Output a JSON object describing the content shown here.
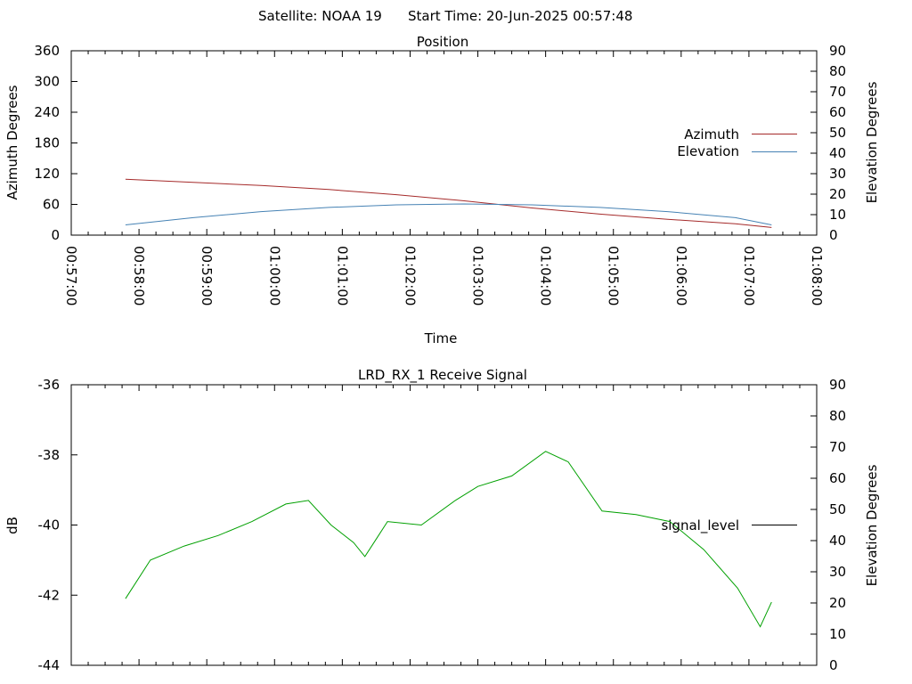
{
  "header": {
    "satellite": "Satellite: NOAA 19",
    "start_time": "Start Time: 20-Jun-2025 00:57:48"
  },
  "colors": {
    "azimuth": "#a52a2a",
    "elevation": "#4682b4",
    "signal": "#00a000",
    "legend_signal": "#000000"
  },
  "chart_data": [
    {
      "id": "position",
      "type": "line",
      "title": "Position",
      "xlabel": "Time",
      "ylabel": "Azimuth Degrees",
      "y2label": "Elevation Degrees",
      "xlim": [
        "00:57:00",
        "01:08:00"
      ],
      "x_ticks": [
        "00:57:00",
        "00:58:00",
        "00:59:00",
        "01:00:00",
        "01:01:00",
        "01:02:00",
        "01:03:00",
        "01:04:00",
        "01:05:00",
        "01:06:00",
        "01:07:00",
        "01:08:00"
      ],
      "ylim": [
        0,
        360
      ],
      "y_ticks": [
        "0",
        "60",
        "120",
        "180",
        "240",
        "300",
        "360"
      ],
      "y2lim": [
        0,
        90
      ],
      "y2_ticks": [
        "0",
        "10",
        "20",
        "30",
        "40",
        "50",
        "60",
        "70",
        "80",
        "90"
      ],
      "legend_position": "right",
      "series": [
        {
          "name": "Azimuth",
          "axis": "y",
          "x": [
            "00:57:48",
            "00:58:48",
            "00:59:48",
            "01:00:48",
            "01:01:48",
            "01:02:48",
            "01:03:48",
            "01:04:48",
            "01:05:48",
            "01:06:48",
            "01:07:20"
          ],
          "values": [
            109,
            103,
            97,
            89,
            79,
            67,
            53,
            41,
            31,
            22,
            15
          ]
        },
        {
          "name": "Elevation",
          "axis": "y2",
          "x": [
            "00:57:48",
            "00:58:48",
            "00:59:48",
            "01:00:48",
            "01:01:48",
            "01:02:48",
            "01:03:48",
            "01:04:48",
            "01:05:48",
            "01:06:48",
            "01:07:20"
          ],
          "values": [
            5,
            8.5,
            11.5,
            13.5,
            14.8,
            15.2,
            14.8,
            13.5,
            11.5,
            8.5,
            5
          ]
        }
      ]
    },
    {
      "id": "signal",
      "type": "line",
      "title": "LRD_RX_1 Receive Signal",
      "ylabel": "dB",
      "y2label": "Elevation Degrees",
      "xlim": [
        "00:57:00",
        "01:08:00"
      ],
      "ylim": [
        -44,
        -36
      ],
      "y_ticks": [
        "-44",
        "-42",
        "-40",
        "-38",
        "-36"
      ],
      "y2lim": [
        0,
        90
      ],
      "y2_ticks": [
        "0",
        "10",
        "20",
        "30",
        "40",
        "50",
        "60",
        "70",
        "80",
        "90"
      ],
      "legend_position": "right",
      "series": [
        {
          "name": "signal_level",
          "x": [
            "00:57:48",
            "00:58:10",
            "00:58:40",
            "00:59:10",
            "00:59:40",
            "01:00:10",
            "01:00:30",
            "01:00:50",
            "01:01:10",
            "01:01:20",
            "01:01:30",
            "01:01:40",
            "01:02:10",
            "01:02:40",
            "01:03:00",
            "01:03:30",
            "01:04:00",
            "01:04:20",
            "01:04:50",
            "01:05:20",
            "01:05:50",
            "01:06:20",
            "01:06:50",
            "01:07:10",
            "01:07:20"
          ],
          "values": [
            -42.1,
            -41.0,
            -40.6,
            -40.3,
            -39.9,
            -39.4,
            -39.3,
            -40.0,
            -40.5,
            -40.9,
            -40.4,
            -39.9,
            -40.0,
            -39.3,
            -38.9,
            -38.6,
            -37.9,
            -38.2,
            -39.6,
            -39.7,
            -39.9,
            -40.7,
            -41.8,
            -42.9,
            -42.2
          ]
        }
      ]
    }
  ]
}
